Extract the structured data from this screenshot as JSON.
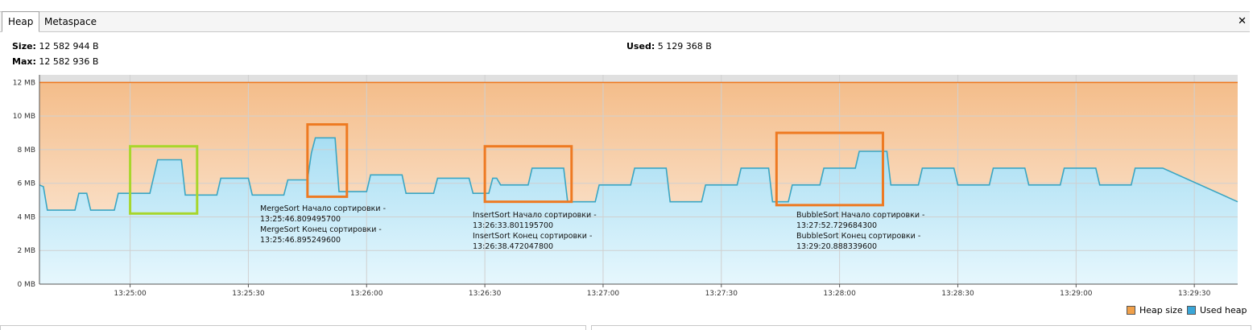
{
  "tabs": [
    {
      "label": "Heap",
      "active": true
    },
    {
      "label": "Metaspace",
      "active": false
    }
  ],
  "close_label": "✕",
  "info": {
    "size_label": "Size:",
    "size_value": "12 582 944 B",
    "max_label": "Max:",
    "max_value": "12 582 936 B",
    "used_label": "Used:",
    "used_value": "5 129 368 B"
  },
  "colors": {
    "heap_size": "#f7c99c",
    "heap_line": "#ee7a22",
    "used_heap_fill": "#c0e8f8",
    "used_heap_line": "#3aa6c4",
    "box_green": "#a8d62c",
    "box_orange": "#ee7a22",
    "grid": "#d0d0d0"
  },
  "chart_data": {
    "type": "area",
    "ylim": [
      0,
      12
    ],
    "y_ticks": [
      "0 MB",
      "2 MB",
      "4 MB",
      "6 MB",
      "8 MB",
      "10 MB",
      "12 MB"
    ],
    "x_ticks": [
      "13:25:00",
      "13:25:30",
      "13:26:00",
      "13:26:30",
      "13:27:00",
      "13:27:30",
      "13:28:00",
      "13:28:30",
      "13:29:00",
      "13:29:30"
    ],
    "series": [
      {
        "name": "Heap size",
        "values_mb": [
          [
            -23,
            12
          ],
          [
            281,
            12
          ]
        ]
      },
      {
        "name": "Used heap",
        "values_mb": [
          [
            -23,
            5.9
          ],
          [
            -22,
            5.8
          ],
          [
            -21,
            4.4
          ],
          [
            -14,
            4.4
          ],
          [
            -13,
            5.4
          ],
          [
            -11,
            5.4
          ],
          [
            -10,
            4.4
          ],
          [
            -4,
            4.4
          ],
          [
            -3,
            5.4
          ],
          [
            5,
            5.4
          ],
          [
            7,
            7.4
          ],
          [
            13,
            7.4
          ],
          [
            14,
            5.3
          ],
          [
            22,
            5.3
          ],
          [
            23,
            6.3
          ],
          [
            30,
            6.3
          ],
          [
            31,
            5.3
          ],
          [
            39,
            5.3
          ],
          [
            40,
            6.2
          ],
          [
            45,
            6.2
          ],
          [
            46,
            7.8
          ],
          [
            47,
            8.7
          ],
          [
            52,
            8.7
          ],
          [
            53,
            5.5
          ],
          [
            60,
            5.5
          ],
          [
            61,
            6.5
          ],
          [
            69,
            6.5
          ],
          [
            70,
            5.4
          ],
          [
            77,
            5.4
          ],
          [
            78,
            6.3
          ],
          [
            86,
            6.3
          ],
          [
            87,
            5.4
          ],
          [
            91,
            5.4
          ],
          [
            92,
            6.3
          ],
          [
            93,
            6.3
          ],
          [
            94,
            5.9
          ],
          [
            101,
            5.9
          ],
          [
            102,
            6.9
          ],
          [
            110,
            6.9
          ],
          [
            111,
            4.9
          ],
          [
            118,
            4.9
          ],
          [
            119,
            5.9
          ],
          [
            127,
            5.9
          ],
          [
            128,
            6.9
          ],
          [
            136,
            6.9
          ],
          [
            137,
            4.9
          ],
          [
            145,
            4.9
          ],
          [
            146,
            5.9
          ],
          [
            154,
            5.9
          ],
          [
            155,
            6.9
          ],
          [
            162,
            6.9
          ],
          [
            163,
            4.9
          ],
          [
            167,
            4.9
          ],
          [
            168,
            5.9
          ],
          [
            175,
            5.9
          ],
          [
            176,
            6.9
          ],
          [
            184,
            6.9
          ],
          [
            185,
            7.9
          ],
          [
            192,
            7.9
          ],
          [
            193,
            5.9
          ],
          [
            200,
            5.9
          ],
          [
            201,
            6.9
          ],
          [
            209,
            6.9
          ],
          [
            210,
            5.9
          ],
          [
            218,
            5.9
          ],
          [
            219,
            6.9
          ],
          [
            227,
            6.9
          ],
          [
            228,
            5.9
          ],
          [
            236,
            5.9
          ],
          [
            237,
            6.9
          ],
          [
            245,
            6.9
          ],
          [
            246,
            5.9
          ],
          [
            254,
            5.9
          ],
          [
            255,
            6.9
          ],
          [
            262,
            6.9
          ],
          [
            281,
            4.9
          ]
        ]
      }
    ],
    "legend": [
      "Heap size",
      "Used heap"
    ],
    "legend_position": "bottom-right",
    "annotations": [
      {
        "lines": [
          "MergeSort Начало сортировки -",
          "13:25:46.809495700",
          "MergeSort Конец сортировки -",
          "13:25:46.895249600"
        ]
      },
      {
        "lines": [
          "InsertSort Начало сортировки -",
          "13:26:33.801195700",
          "InsertSort Конец сортировки -",
          "13:26:38.472047800"
        ]
      },
      {
        "lines": [
          "BubbleSort Начало сортировки -",
          "13:27:52.729684300",
          "BubbleSort Конец сортировки -",
          "13:29:20.888339600"
        ]
      }
    ],
    "highlight_boxes": [
      {
        "color": "green",
        "t": [
          0,
          17
        ],
        "mb": [
          4.2,
          8.2
        ]
      },
      {
        "color": "orange",
        "t": [
          45,
          55
        ],
        "mb": [
          5.2,
          9.5
        ]
      },
      {
        "color": "orange",
        "t": [
          90,
          112
        ],
        "mb": [
          4.9,
          8.2
        ]
      },
      {
        "color": "orange",
        "t": [
          164,
          191
        ],
        "mb": [
          4.7,
          9.0
        ]
      }
    ],
    "grid": true
  }
}
